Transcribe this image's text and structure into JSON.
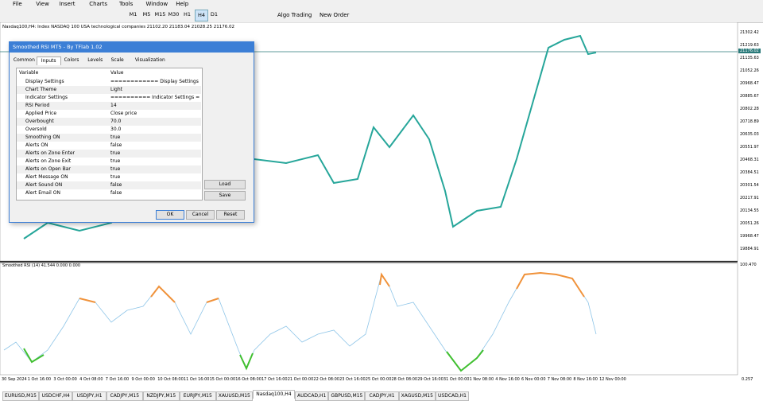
{
  "menu": [
    "File",
    "View",
    "Insert",
    "Charts",
    "Tools",
    "Window",
    "Help"
  ],
  "toolbar": {
    "timeframes": [
      "M1",
      "M5",
      "M15",
      "M30",
      "H1",
      "H4",
      "D1"
    ],
    "active_timeframe": 5,
    "algo_trading": "Algo Trading",
    "new_order": "New Order"
  },
  "chart": {
    "header": "Nasdaq100,H4:  Index NASDAQ 100 USA technological companies  21102.20 21183.04 21028.25 21176.02",
    "price_labels": [
      "21302.42",
      "21219.63",
      "21135.63",
      "21052.26",
      "20968.47",
      "20885.67",
      "20802.28",
      "20718.89",
      "20635.03",
      "20551.97",
      "20468.31",
      "20384.51",
      "20301.54",
      "20217.91",
      "20134.55",
      "20051.26",
      "19968.47",
      "19884.91"
    ],
    "current_price": "21176.02",
    "indicator_header": "Smoothed RSI (14) 41.544 0.000 0.000",
    "indicator_levels": [
      "100.470",
      "0.257"
    ],
    "time_labels": [
      "30 Sep 2024",
      "1 Oct 16:00",
      "3 Oct 00:00",
      "4 Oct 08:00",
      "7 Oct 16:00",
      "9 Oct 00:00",
      "10 Oct 08:00",
      "11 Oct 16:00",
      "15 Oct 00:00",
      "16 Oct 08:00",
      "17 Oct 16:00",
      "21 Oct 00:00",
      "22 Oct 08:00",
      "23 Oct 16:00",
      "25 Oct 00:00",
      "28 Oct 08:00",
      "29 Oct 16:00",
      "31 Oct 00:00",
      "1 Nov 08:00",
      "4 Nov 16:00",
      "6 Nov 00:00",
      "7 Nov 08:00",
      "8 Nov 16:00",
      "12 Nov 00:00"
    ]
  },
  "dialog": {
    "title": "Smoothed RSI MT5 - By TFlab 1.02",
    "tabs": [
      "Common",
      "Inputs",
      "Colors",
      "Levels",
      "Scale",
      "Visualization"
    ],
    "active_tab": 1,
    "columns": [
      "Variable",
      "Value"
    ],
    "rows": [
      [
        "Display Settings",
        "============ Display Settings ============"
      ],
      [
        "Chart Theme",
        "Light"
      ],
      [
        "Indicator Settings",
        "========== Indicator Settings =========="
      ],
      [
        "RSI Period",
        "14"
      ],
      [
        "Applied Price",
        "Close price"
      ],
      [
        "Overbought",
        "70.0"
      ],
      [
        "Oversold",
        "30.0"
      ],
      [
        "Smoothing ON",
        "true"
      ],
      [
        "Alerts ON",
        "false"
      ],
      [
        "Alerts on Zone Enter",
        "true"
      ],
      [
        "Alerts on Zone Exit",
        "true"
      ],
      [
        "Alerts on Open Bar",
        "true"
      ],
      [
        "Alert Message ON",
        "true"
      ],
      [
        "Alert Sound ON",
        "false"
      ],
      [
        "Alert Email ON",
        "false"
      ]
    ],
    "side_buttons": [
      "Load",
      "Save"
    ],
    "buttons": [
      "OK",
      "Cancel",
      "Reset"
    ]
  },
  "tabs": {
    "items": [
      "EURUSD,M15",
      "USDCHF,H4",
      "USDJPY,H1",
      "CADJPY,M15",
      "NZDJPY,M15",
      "EURJPY,M15",
      "XAUUSD,M15",
      "Nasdaq100,H4",
      "AUDCAD,H1",
      "GBPUSD,M15",
      "CADJPY,H1",
      "XAGUSD,M15",
      "USDCAD,H1"
    ],
    "active": 7
  }
}
